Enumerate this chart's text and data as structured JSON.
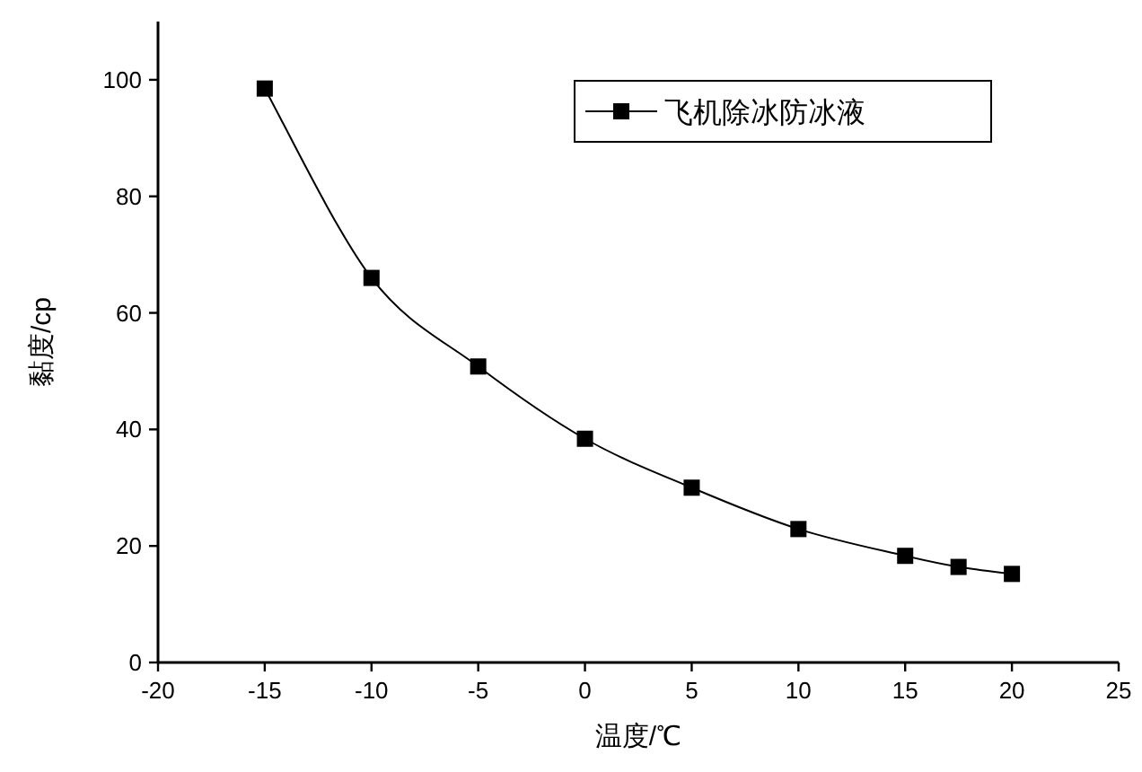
{
  "chart_data": {
    "type": "line",
    "xlabel": "温度/℃",
    "ylabel": "黏度/cp",
    "x": [
      -15,
      -10,
      -5,
      0,
      5,
      10,
      15,
      17.5,
      20
    ],
    "series": [
      {
        "name": "飞机除冰防冰液",
        "color": "#000000",
        "values": [
          98.5,
          66,
          50.8,
          38.4,
          30,
          22.9,
          18.3,
          16.4,
          15.2
        ]
      }
    ],
    "xlim": [
      -20,
      25
    ],
    "xticks": [
      -20,
      -15,
      -10,
      -5,
      0,
      5,
      10,
      15,
      20,
      25
    ],
    "ylim": [
      0,
      110
    ],
    "yticks": [
      0,
      20,
      40,
      60,
      80,
      100
    ],
    "grid": false,
    "legend": "top right",
    "marker": "square",
    "line_style": "solid"
  }
}
